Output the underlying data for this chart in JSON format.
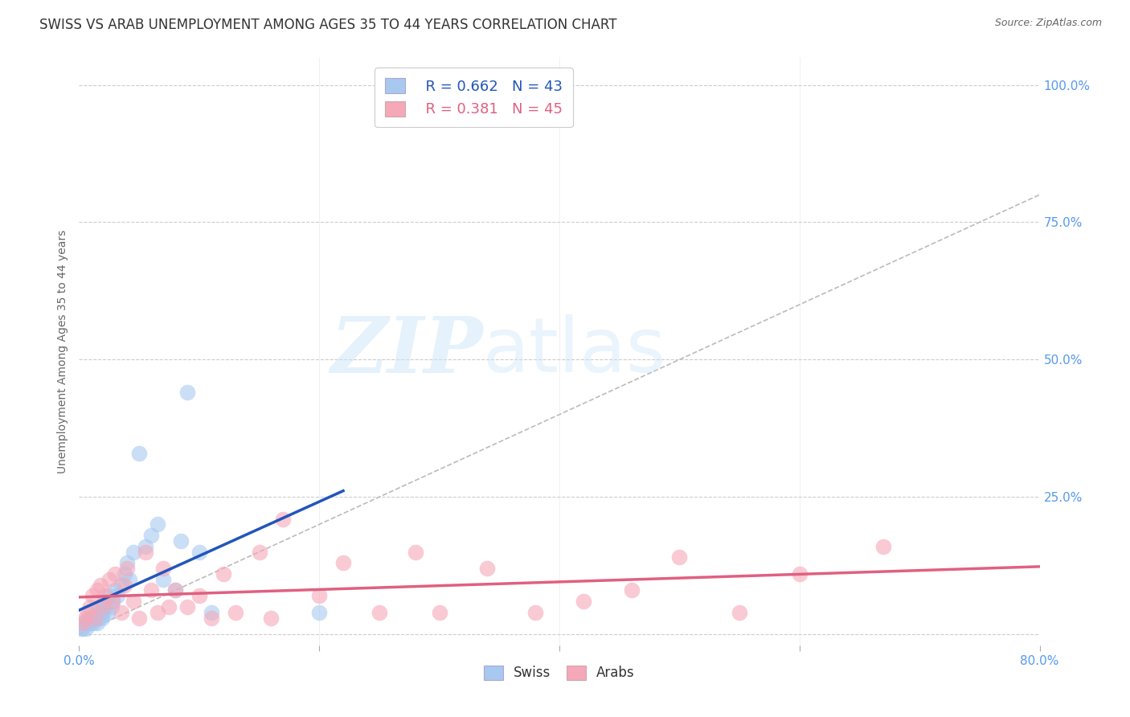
{
  "title": "SWISS VS ARAB UNEMPLOYMENT AMONG AGES 35 TO 44 YEARS CORRELATION CHART",
  "source": "Source: ZipAtlas.com",
  "ylabel": "Unemployment Among Ages 35 to 44 years",
  "xlim": [
    0.0,
    0.8
  ],
  "ylim": [
    -0.02,
    1.05
  ],
  "xtick_positions": [
    0.0,
    0.2,
    0.4,
    0.6,
    0.8
  ],
  "xticklabels": [
    "0.0%",
    "",
    "",
    "",
    "80.0%"
  ],
  "ytick_positions": [
    0.0,
    0.25,
    0.5,
    0.75,
    1.0
  ],
  "yticklabels_right": [
    "",
    "25.0%",
    "50.0%",
    "75.0%",
    "100.0%"
  ],
  "grid_color": "#cccccc",
  "background_color": "#ffffff",
  "watermark_zip": "ZIP",
  "watermark_atlas": "atlas",
  "swiss_color": "#a8c8f0",
  "arab_color": "#f5a8b8",
  "swiss_line_color": "#2255bb",
  "arab_line_color": "#e06080",
  "diagonal_color": "#bbbbbb",
  "legend_swiss_R": "0.662",
  "legend_swiss_N": "43",
  "legend_arab_R": "0.381",
  "legend_arab_N": "45",
  "swiss_x": [
    0.002,
    0.003,
    0.004,
    0.005,
    0.006,
    0.007,
    0.008,
    0.009,
    0.01,
    0.011,
    0.012,
    0.013,
    0.014,
    0.015,
    0.016,
    0.017,
    0.018,
    0.019,
    0.02,
    0.021,
    0.022,
    0.024,
    0.025,
    0.027,
    0.028,
    0.03,
    0.032,
    0.035,
    0.038,
    0.04,
    0.042,
    0.045,
    0.05,
    0.055,
    0.06,
    0.065,
    0.07,
    0.08,
    0.085,
    0.09,
    0.1,
    0.11,
    0.2
  ],
  "swiss_y": [
    0.01,
    0.01,
    0.02,
    0.02,
    0.01,
    0.02,
    0.03,
    0.03,
    0.02,
    0.03,
    0.02,
    0.03,
    0.04,
    0.02,
    0.03,
    0.05,
    0.04,
    0.03,
    0.04,
    0.06,
    0.05,
    0.04,
    0.07,
    0.05,
    0.06,
    0.08,
    0.07,
    0.09,
    0.11,
    0.13,
    0.1,
    0.15,
    0.33,
    0.16,
    0.18,
    0.2,
    0.1,
    0.08,
    0.17,
    0.44,
    0.15,
    0.04,
    0.04
  ],
  "arab_x": [
    0.003,
    0.005,
    0.007,
    0.009,
    0.011,
    0.013,
    0.015,
    0.018,
    0.02,
    0.022,
    0.025,
    0.028,
    0.03,
    0.035,
    0.038,
    0.04,
    0.045,
    0.05,
    0.055,
    0.06,
    0.065,
    0.07,
    0.075,
    0.08,
    0.09,
    0.1,
    0.11,
    0.12,
    0.13,
    0.15,
    0.16,
    0.17,
    0.2,
    0.22,
    0.25,
    0.28,
    0.3,
    0.34,
    0.38,
    0.42,
    0.46,
    0.5,
    0.55,
    0.6,
    0.67
  ],
  "arab_y": [
    0.02,
    0.03,
    0.04,
    0.05,
    0.07,
    0.03,
    0.08,
    0.09,
    0.05,
    0.07,
    0.1,
    0.06,
    0.11,
    0.04,
    0.09,
    0.12,
    0.06,
    0.03,
    0.15,
    0.08,
    0.04,
    0.12,
    0.05,
    0.08,
    0.05,
    0.07,
    0.03,
    0.11,
    0.04,
    0.15,
    0.03,
    0.21,
    0.07,
    0.13,
    0.04,
    0.15,
    0.04,
    0.12,
    0.04,
    0.06,
    0.08,
    0.14,
    0.04,
    0.11,
    0.16
  ],
  "title_color": "#333333",
  "axis_label_color": "#666666",
  "tick_color": "#5599ee",
  "tick_fontsize": 11,
  "title_fontsize": 12,
  "ylabel_fontsize": 10,
  "source_fontsize": 9
}
